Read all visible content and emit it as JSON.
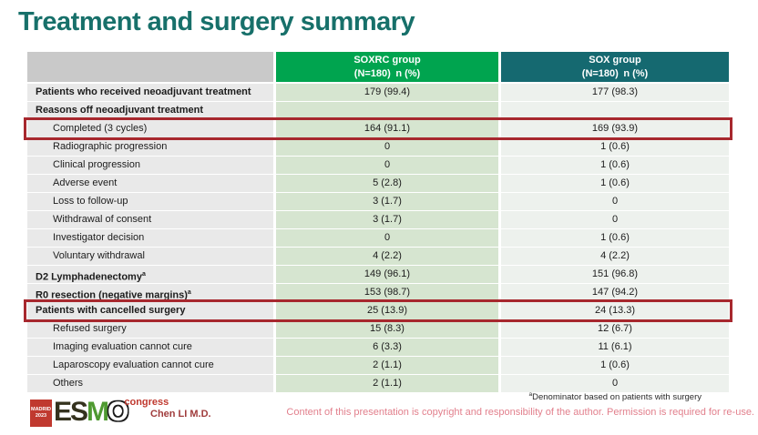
{
  "slide": {
    "title": "Treatment and surgery summary"
  },
  "colors": {
    "title_teal": "#17706A",
    "soxrc_header_green": "#00A44F",
    "sox_header_teal": "#156970",
    "highlight_red": "#A7282E",
    "label_cell_gray": "#E9E9E9",
    "soxrc_cell_green": "#D6E5D0",
    "sox_cell_light": "#EDF1ED",
    "copyright_pink": "#E2808D",
    "author_maroon": "#A03C3C"
  },
  "table": {
    "soxrc_header": {
      "line1": "SOXRC group",
      "line2": "(N=180) n (%)"
    },
    "sox_header": {
      "line1": "SOX group",
      "line2": "(N=180) n (%)"
    },
    "rows": [
      {
        "label": "Patients who received neoadjuvant treatment",
        "soxrc": "179 (99.4)",
        "sox": "177 (98.3)",
        "bold": true
      },
      {
        "label": "Reasons off neoadjuvant treatment",
        "soxrc": "",
        "sox": "",
        "bold": true
      },
      {
        "label": "Completed (3 cycles)",
        "soxrc": "164 (91.1)",
        "sox": "169 (93.9)",
        "indent": true,
        "highlight": true
      },
      {
        "label": "Radiographic progression",
        "soxrc": "0",
        "sox": "1 (0.6)",
        "indent": true
      },
      {
        "label": "Clinical progression",
        "soxrc": "0",
        "sox": "1 (0.6)",
        "indent": true
      },
      {
        "label": "Adverse event",
        "soxrc": "5 (2.8)",
        "sox": "1 (0.6)",
        "indent": true
      },
      {
        "label": "Loss to follow-up",
        "soxrc": "3 (1.7)",
        "sox": "0",
        "indent": true
      },
      {
        "label": "Withdrawal of consent",
        "soxrc": "3 (1.7)",
        "sox": "0",
        "indent": true
      },
      {
        "label": "Investigator decision",
        "soxrc": "0",
        "sox": "1 (0.6)",
        "indent": true
      },
      {
        "label": "Voluntary withdrawal",
        "soxrc": "4 (2.2)",
        "sox": "4 (2.2)",
        "indent": true
      },
      {
        "label": "D2 Lymphadenectomy",
        "sup": "a",
        "soxrc": "149 (96.1)",
        "sox": "151 (96.8)",
        "bold": true
      },
      {
        "label": "R0 resection (negative margins)",
        "sup": "a",
        "soxrc": "153 (98.7)",
        "sox": "147 (94.2)",
        "bold": true
      },
      {
        "label": "Patients with cancelled surgery",
        "soxrc": "25 (13.9)",
        "sox": "24 (13.3)",
        "bold": true,
        "highlight": true
      },
      {
        "label": "Refused surgery",
        "soxrc": "15 (8.3)",
        "sox": "12 (6.7)",
        "indent": true
      },
      {
        "label": "Imaging evaluation cannot cure",
        "soxrc": "6 (3.3)",
        "sox": "11 (6.1)",
        "indent": true
      },
      {
        "label": "Laparoscopy evaluation cannot cure",
        "soxrc": "2 (1.1)",
        "sox": "1 (0.6)",
        "indent": true
      },
      {
        "label": "Others",
        "soxrc": "2 (1.1)",
        "sox": "0",
        "indent": true
      }
    ]
  },
  "footer": {
    "logo": {
      "city": "MADRID",
      "year": "2023",
      "esmo": "ESMO",
      "congress": "congress"
    },
    "author": "Chen LI M.D.",
    "footnote_sup": "a",
    "footnote": "Denominator based on patients with surgery",
    "copyright": "Content of this presentation is copyright and responsibility of the author. Permission is required for re-use."
  }
}
